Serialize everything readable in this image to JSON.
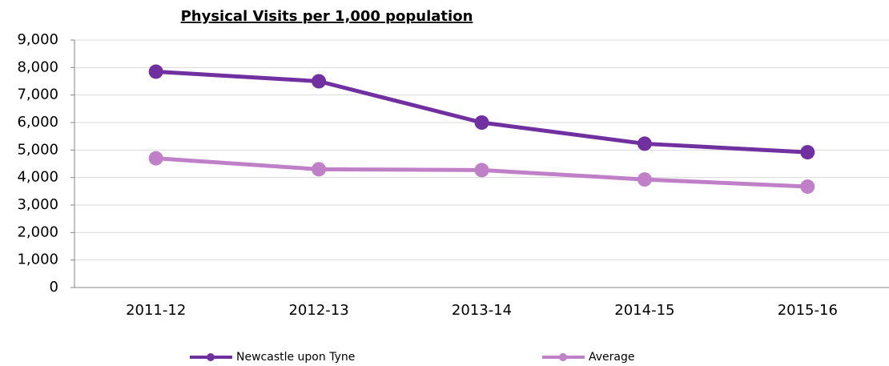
{
  "chart_data": {
    "type": "line",
    "title": "Physical Visits per 1,000 population",
    "categories": [
      "2011-12",
      "2012-13",
      "2013-14",
      "2014-15",
      "2015-16"
    ],
    "series": [
      {
        "name": "Newcastle upon Tyne",
        "color": "#7030a0",
        "values": [
          7850,
          7500,
          6000,
          5230,
          4920
        ]
      },
      {
        "name": "Average",
        "color": "#c080c8",
        "values": [
          4700,
          4300,
          4270,
          3930,
          3670
        ]
      }
    ],
    "ylim": [
      0,
      9000
    ],
    "yticks": [
      0,
      {
        "value": 1000,
        "label": "1,000"
      },
      {
        "value": 2000,
        "label": "2,000"
      },
      {
        "value": 3000,
        "label": "3,000"
      },
      {
        "value": 4000,
        "label": "4,000"
      },
      {
        "value": 5000,
        "label": "5,000"
      },
      {
        "value": 6000,
        "label": "6,000"
      },
      {
        "value": 7000,
        "label": "7,000"
      },
      {
        "value": 8000,
        "label": "8,000"
      },
      {
        "value": 9000,
        "label": "9,000"
      }
    ],
    "grid": true
  }
}
